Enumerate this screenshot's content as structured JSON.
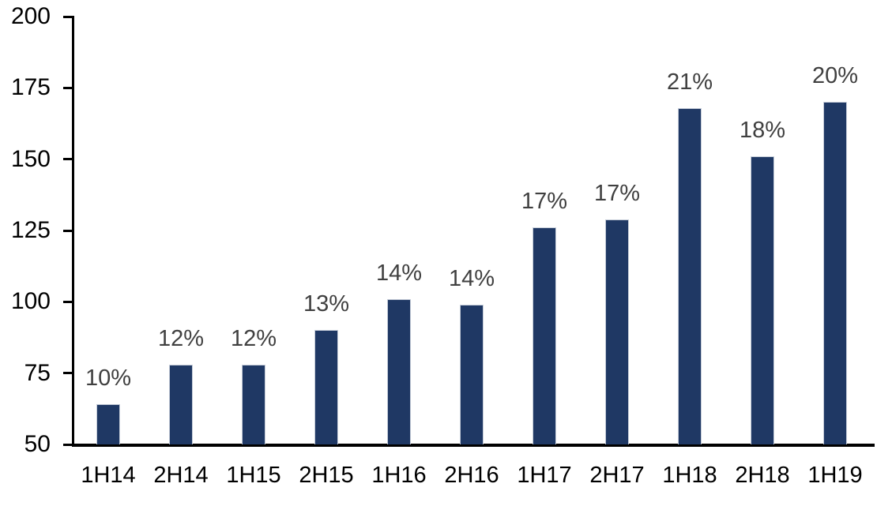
{
  "chart_data": {
    "type": "bar",
    "title": "",
    "xlabel": "",
    "ylabel": "",
    "categories": [
      "1H14",
      "2H14",
      "1H15",
      "2H15",
      "1H16",
      "2H16",
      "1H17",
      "2H17",
      "1H18",
      "2H18",
      "1H19"
    ],
    "values": [
      64,
      78,
      78,
      90,
      101,
      99,
      126,
      129,
      168,
      151,
      170
    ],
    "bar_labels": [
      "10%",
      "12%",
      "12%",
      "13%",
      "14%",
      "14%",
      "17%",
      "17%",
      "21%",
      "18%",
      "20%"
    ],
    "ylim": [
      50,
      200
    ],
    "y_ticks": [
      50,
      75,
      100,
      125,
      150,
      175,
      200
    ],
    "grid": "off",
    "legend": "none",
    "colors": {
      "bar_fill": "#1F3864",
      "bar_border": "#C6CDD9",
      "value_label": "#404040",
      "axis_text": "#000000",
      "axis_line": "#000000",
      "background": "#FFFFFF"
    }
  }
}
